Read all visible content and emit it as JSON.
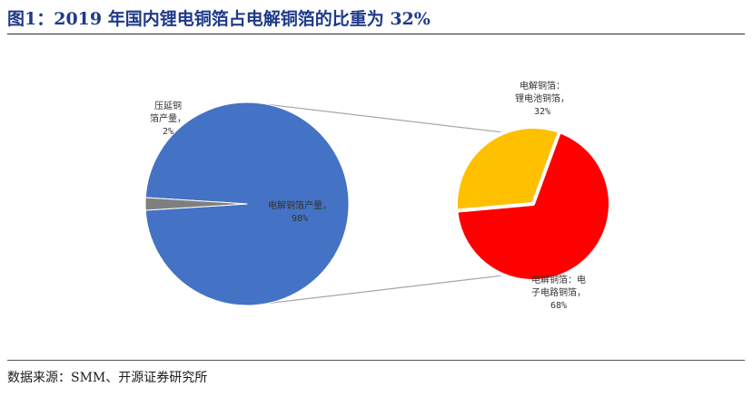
{
  "header": {
    "title": "图1：2019 年国内锂电铜箔占电解铜箔的比重为 32%"
  },
  "footer": {
    "source": "数据来源：SMM、开源证券研究所"
  },
  "chart_data": {
    "type": "pie",
    "title": "图1：2019 年国内锂电铜箔占电解铜箔的比重为 32%",
    "main_pie": {
      "slices": [
        {
          "label_lines": [
            "电解铜箔产量，",
            "98%"
          ],
          "value": 98,
          "color": "#4472c4"
        },
        {
          "label_lines": [
            "压延铜",
            "箔产量，",
            "2%"
          ],
          "value": 2,
          "color": "#7f7f7f"
        }
      ]
    },
    "sub_pie": {
      "slices": [
        {
          "label_lines": [
            "电解铜箔：",
            "锂电池铜箔，",
            "32%"
          ],
          "value": 32,
          "color": "#ffc000"
        },
        {
          "label_lines": [
            "电解铜箔：电",
            "子电路铜箔，",
            "68%"
          ],
          "value": 68,
          "color": "#ff0000"
        }
      ]
    },
    "connector_color": "#a6a6a6"
  }
}
